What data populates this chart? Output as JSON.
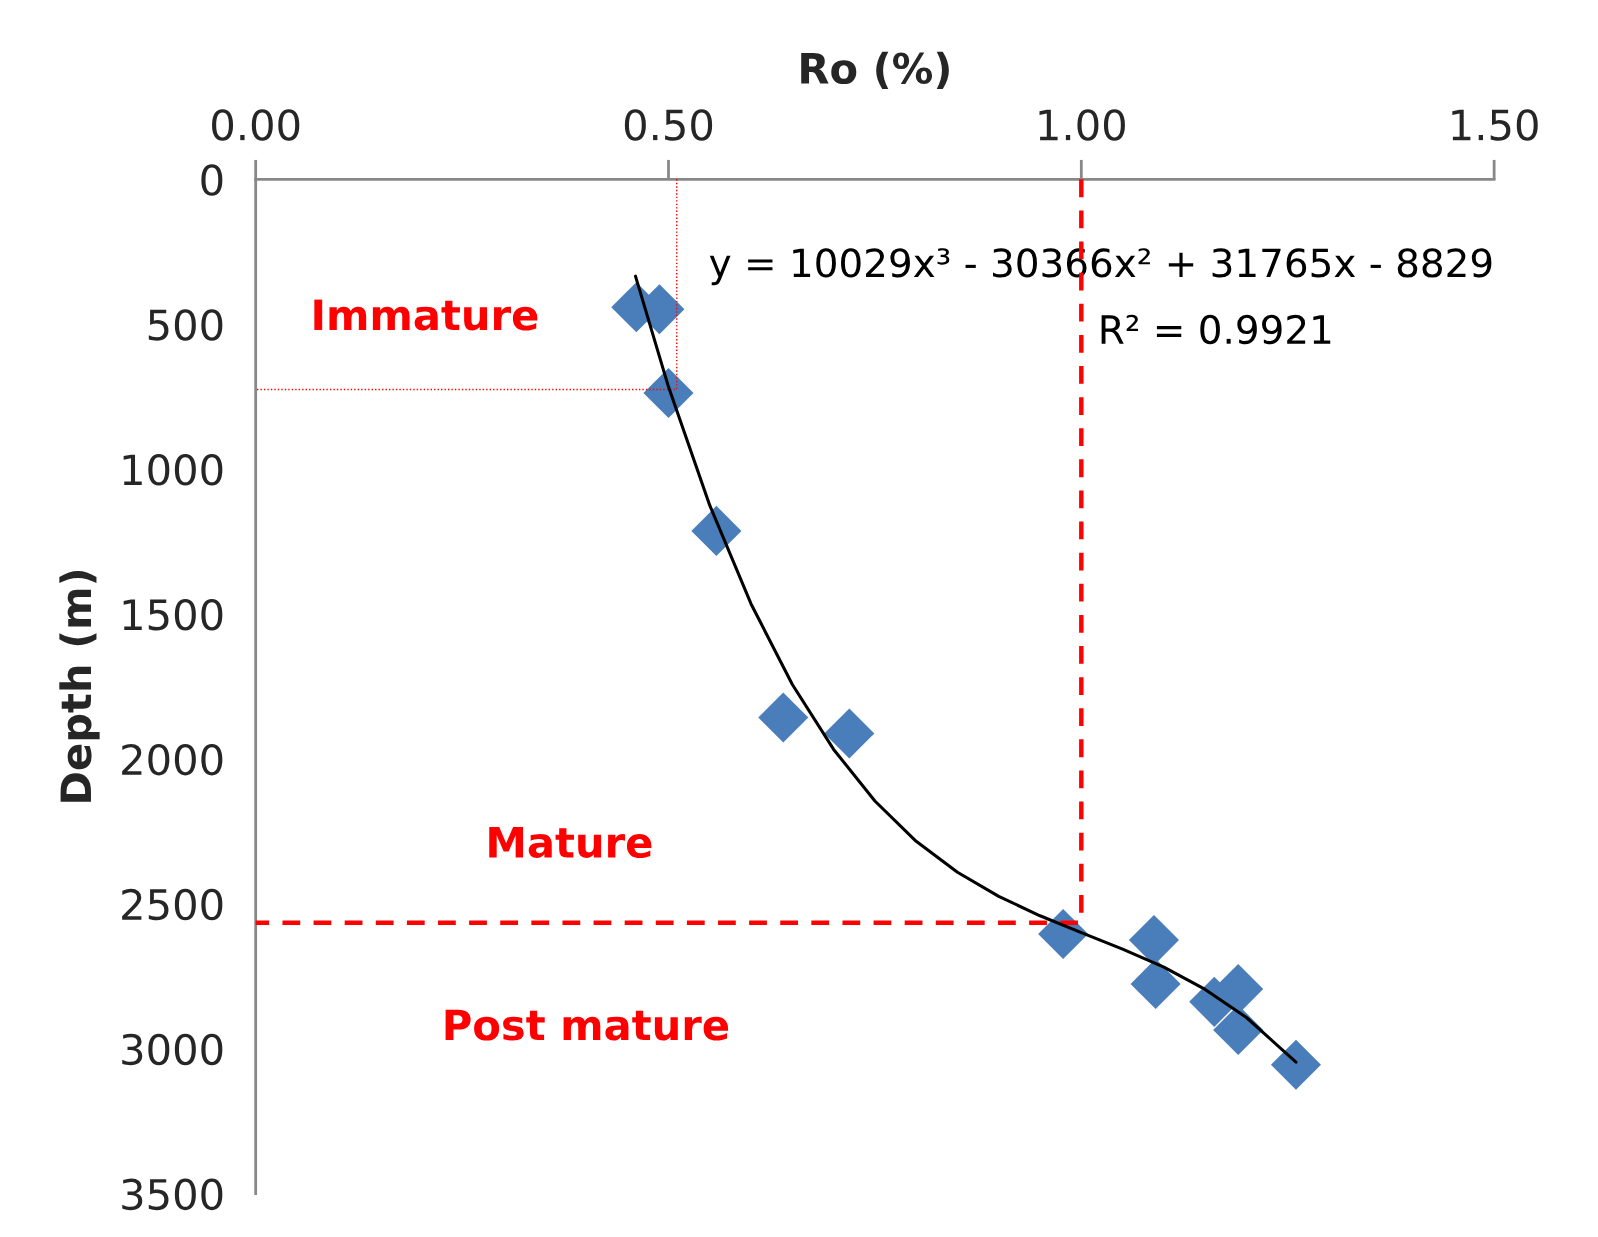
{
  "chart_data": {
    "type": "scatter",
    "xlabel": "Ro (%)",
    "ylabel": "Depth (m)",
    "xlim": [
      0,
      1.5
    ],
    "xticks": [
      {
        "value": 0,
        "label": "0.00"
      },
      {
        "value": 0.5,
        "label": "0.50"
      },
      {
        "value": 1.0,
        "label": "1.00"
      },
      {
        "value": 1.5,
        "label": "1.50"
      }
    ],
    "ylim": [
      3500,
      0
    ],
    "yticks": [
      0,
      500,
      1000,
      1500,
      2000,
      2500,
      3000,
      3500
    ],
    "grid": false,
    "legend": false,
    "marker": "diamond",
    "series": [
      {
        "color": "#4a7ebb",
        "x": [
          0.461,
          0.489,
          0.5,
          0.558,
          0.639,
          0.719,
          0.978,
          1.088,
          1.09,
          1.161,
          1.19,
          1.19,
          1.26
        ],
        "values": [
          441,
          448,
          737,
          1213,
          1857,
          1912,
          2604,
          2625,
          2776,
          2838,
          2794,
          2935,
          3055
        ]
      },
      {
        "type": "line",
        "color": "#000000",
        "marker": "none",
        "line_style": "solid",
        "x": [
          0.46,
          0.5,
          0.55,
          0.6,
          0.65,
          0.7,
          0.75,
          0.8,
          0.85,
          0.9,
          0.95,
          1.0,
          1.05,
          1.1,
          1.15,
          1.2,
          1.26
        ],
        "values": [
          334,
          716,
          1125,
          1465,
          1743,
          1967,
          2145,
          2284,
          2391,
          2474,
          2541,
          2599,
          2656,
          2718,
          2795,
          2892,
          3046
        ]
      },
      {
        "type": "line",
        "color": "#ff0000",
        "marker": "none",
        "line_style": "dashed",
        "x": [
          1.0,
          1.0,
          0
        ],
        "values": [
          0,
          2565,
          2565
        ]
      },
      {
        "type": "line",
        "color": "#ff0000",
        "marker": "none",
        "line_style": "dotted",
        "x": [
          0.51,
          0.51,
          0
        ],
        "values": [
          0,
          725,
          725
        ]
      }
    ],
    "annotations": [
      "y = 10029x³ - 30366x² + 31765x - 8829",
      "R² = 0.9921",
      "Immature",
      "Mature",
      "Post mature"
    ]
  }
}
